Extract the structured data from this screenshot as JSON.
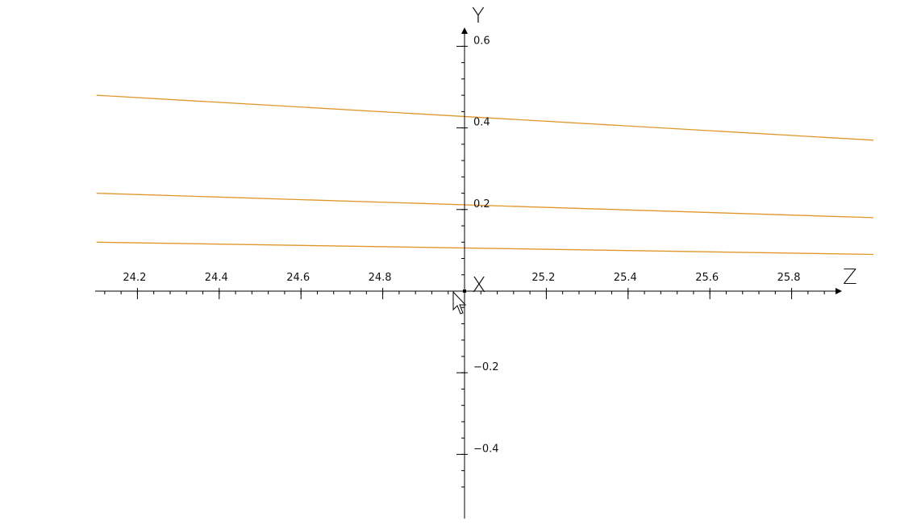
{
  "plot": {
    "curve_color": "#e0962a",
    "axis_color": "#000000",
    "axes": {
      "horizontal_name": "Z",
      "vertical_name": "Y",
      "origin_name": "X"
    },
    "z_ticks": [
      {
        "value": 24.2,
        "label": "24.2"
      },
      {
        "value": 24.4,
        "label": "24.4"
      },
      {
        "value": 24.6,
        "label": "24.6"
      },
      {
        "value": 24.8,
        "label": "24.8"
      },
      {
        "value": 25.2,
        "label": "25.2"
      },
      {
        "value": 25.4,
        "label": "25.4"
      },
      {
        "value": 25.6,
        "label": "25.6"
      },
      {
        "value": 25.8,
        "label": "25.8"
      }
    ],
    "y_ticks": [
      {
        "value": 0.6,
        "label": "0.6"
      },
      {
        "value": 0.4,
        "label": "0.4"
      },
      {
        "value": 0.2,
        "label": "0.2"
      },
      {
        "value": -0.2,
        "label": "−0.2"
      },
      {
        "value": -0.4,
        "label": "−0.4"
      }
    ],
    "z_range": [
      24.1,
      26.0
    ],
    "y_range": [
      -0.55,
      0.62
    ]
  },
  "chart_data": {
    "type": "line",
    "xlabel": "Z",
    "ylabel": "Y",
    "x": [
      24.1,
      26.0
    ],
    "series": [
      {
        "values": [
          0.48,
          0.37
        ]
      },
      {
        "values": [
          0.24,
          0.18
        ]
      },
      {
        "values": [
          0.12,
          0.09
        ]
      }
    ]
  },
  "cursor": {
    "icon": "arrow-cursor-icon"
  }
}
